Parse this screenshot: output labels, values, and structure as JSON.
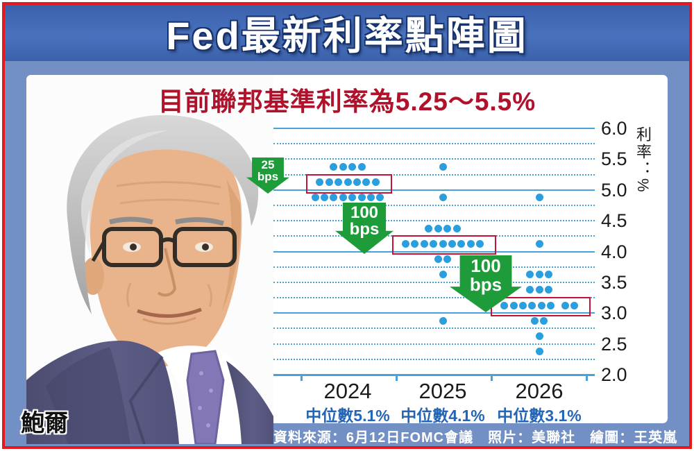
{
  "title": "Fed最新利率點陣圖",
  "subtitle": "目前聯邦基準利率為5.25～5.5%",
  "photo": {
    "caption": "鮑爾"
  },
  "footer": {
    "source": "資料來源：6月12日FOMC會議　照片：美聯社　繪圖：王英嵐"
  },
  "colors": {
    "frame_red": "#e4181f",
    "banner_blue": "#3a61ac",
    "band_blue": "#7390c4",
    "grid_blue": "#45a3da",
    "dot_blue": "#2b9ede",
    "arrow_green": "#1f9c3a",
    "box_red": "#c41236",
    "subtitle_red": "#b0122c",
    "median_blue": "#2465b5"
  },
  "chart_data": {
    "type": "scatter",
    "variant": "fed-dot-plot",
    "title": "Fed最新利率點陣圖",
    "xlabel": "",
    "ylabel": "利率：%",
    "ylim": [
      2.0,
      6.0
    ],
    "grid_step": 0.25,
    "y_ticks": [
      "6.0",
      "5.5",
      "5.0",
      "4.5",
      "4.0",
      "3.5",
      "3.0",
      "2.5",
      "2.0"
    ],
    "categories": [
      "2024",
      "2025",
      "2026"
    ],
    "median_labels": [
      "中位數5.1%",
      "中位數4.1%",
      "中位數3.1%"
    ],
    "medians_pct": [
      5.1,
      4.1,
      3.1
    ],
    "dots": [
      {
        "year": "2024",
        "rate": 5.375,
        "count": 4
      },
      {
        "year": "2024",
        "rate": 5.125,
        "count": 7,
        "boxed": true
      },
      {
        "year": "2024",
        "rate": 4.875,
        "count": 8
      },
      {
        "year": "2025",
        "rate": 5.375,
        "count": 1
      },
      {
        "year": "2025",
        "rate": 4.875,
        "count": 1
      },
      {
        "year": "2025",
        "rate": 4.375,
        "count": 4
      },
      {
        "year": "2025",
        "rate": 4.125,
        "count": 9,
        "boxed": true
      },
      {
        "year": "2025",
        "rate": 3.875,
        "count": 2
      },
      {
        "year": "2025",
        "rate": 3.625,
        "count": 1
      },
      {
        "year": "2025",
        "rate": 2.875,
        "count": 1
      },
      {
        "year": "2026",
        "rate": 4.875,
        "count": 1
      },
      {
        "year": "2026",
        "rate": 4.125,
        "count": 1
      },
      {
        "year": "2026",
        "rate": 3.625,
        "count": 3
      },
      {
        "year": "2026",
        "rate": 3.375,
        "count": 3
      },
      {
        "year": "2026",
        "rate": 3.125,
        "count": 8,
        "boxed": true,
        "split": [
          6,
          2
        ]
      },
      {
        "year": "2026",
        "rate": 2.875,
        "count": 2
      },
      {
        "year": "2026",
        "rate": 2.625,
        "count": 1
      },
      {
        "year": "2026",
        "rate": 2.375,
        "count": 1
      }
    ],
    "annotations": [
      {
        "line1": "25",
        "line2": "bps"
      },
      {
        "line1": "100",
        "line2": "bps"
      },
      {
        "line1": "100",
        "line2": "bps"
      }
    ]
  }
}
